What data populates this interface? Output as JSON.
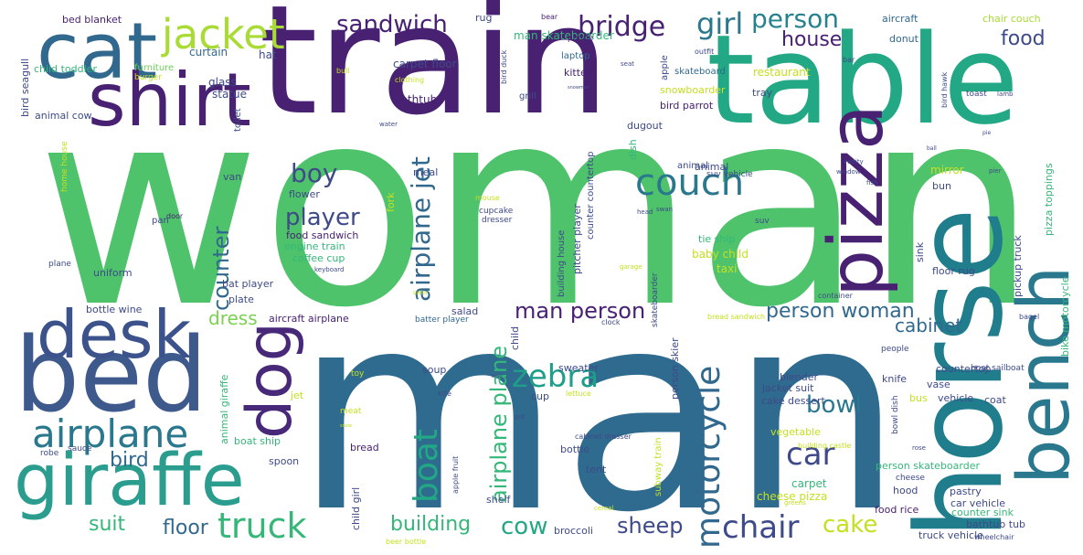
{
  "palette": {
    "dark_purple": "#482173",
    "dark_blue": "#3e4a89",
    "steel_blue": "#31688e",
    "teal": "#26828e",
    "sea_green": "#1f9e89",
    "green": "#35b779",
    "light_green": "#6ece58",
    "yellow_green": "#b5de2b",
    "yellow": "#fde725",
    "background": "#ffffff"
  },
  "words": [
    {
      "text": "woman",
      "color": "#4ec36b"
    },
    {
      "text": "man",
      "color": "#2f6b8e"
    },
    {
      "text": "train",
      "color": "#482173"
    },
    {
      "text": "table",
      "color": "#22a884"
    },
    {
      "text": "horse",
      "color": "#1f7d8c"
    },
    {
      "text": "bed",
      "color": "#3e5a8c"
    },
    {
      "text": "cat",
      "color": "#31688e"
    },
    {
      "text": "shirt",
      "color": "#482173"
    },
    {
      "text": "giraffe",
      "color": "#2a9d8f"
    },
    {
      "text": "desk",
      "color": "#3b528b"
    },
    {
      "text": "pizza",
      "color": "#482173"
    },
    {
      "text": "bench",
      "color": "#2a788e"
    },
    {
      "text": "dog",
      "color": "#482878"
    },
    {
      "text": "jacket",
      "color": "#a8db34"
    },
    {
      "text": "airplane",
      "color": "#2a788e"
    },
    {
      "text": "couch",
      "color": "#2a788e"
    },
    {
      "text": "truck",
      "color": "#35b779"
    },
    {
      "text": "chair",
      "color": "#3e4a89"
    },
    {
      "text": "motorcycle",
      "color": "#31688e"
    },
    {
      "text": "car",
      "color": "#3e4a89"
    },
    {
      "text": "zebra",
      "color": "#1f9e89"
    },
    {
      "text": "boat",
      "color": "#22a884"
    },
    {
      "text": "girl",
      "color": "#2a788e"
    },
    {
      "text": "bridge",
      "color": "#482173"
    },
    {
      "text": "sandwich",
      "color": "#482173"
    },
    {
      "text": "person",
      "color": "#26828e"
    },
    {
      "text": "house",
      "color": "#482173"
    },
    {
      "text": "food",
      "color": "#3e4a89"
    },
    {
      "text": "boy",
      "color": "#3e4a89"
    },
    {
      "text": "player",
      "color": "#3e4a89"
    },
    {
      "text": "counter",
      "color": "#31688e"
    },
    {
      "text": "airplane jet",
      "color": "#31688e"
    },
    {
      "text": "airplane plane",
      "color": "#35b779"
    },
    {
      "text": "man person",
      "color": "#482173"
    },
    {
      "text": "person woman",
      "color": "#31688e"
    },
    {
      "text": "cabinet",
      "color": "#31688e"
    },
    {
      "text": "bowl",
      "color": "#2a788e"
    },
    {
      "text": "dress",
      "color": "#7ad151"
    },
    {
      "text": "bird",
      "color": "#31688e"
    },
    {
      "text": "suit",
      "color": "#35b779"
    },
    {
      "text": "floor",
      "color": "#31688e"
    },
    {
      "text": "building",
      "color": "#35b779"
    },
    {
      "text": "cow",
      "color": "#22a884"
    },
    {
      "text": "sheep",
      "color": "#3e4a89"
    },
    {
      "text": "cake",
      "color": "#c5e021"
    },
    {
      "text": "man skateboarder",
      "color": "#35b779"
    },
    {
      "text": "bed blanket",
      "color": "#482173"
    },
    {
      "text": "child toddler",
      "color": "#35b779"
    },
    {
      "text": "bird seagull",
      "color": "#3e4a89"
    },
    {
      "text": "animal cow",
      "color": "#3e4a89"
    },
    {
      "text": "curtain",
      "color": "#31688e"
    },
    {
      "text": "furniture",
      "color": "#6ece58"
    },
    {
      "text": "hat",
      "color": "#3e4a89"
    },
    {
      "text": "rug",
      "color": "#3e4a89"
    },
    {
      "text": "bear",
      "color": "#482173"
    },
    {
      "text": "aircraft",
      "color": "#31688e"
    },
    {
      "text": "chair couch",
      "color": "#a8db34"
    },
    {
      "text": "carpet floor",
      "color": "#3e4a89"
    },
    {
      "text": "glass",
      "color": "#3e4a89"
    },
    {
      "text": "statue",
      "color": "#3e4a89"
    },
    {
      "text": "bathtub",
      "color": "#482173"
    },
    {
      "text": "kitten",
      "color": "#482173"
    },
    {
      "text": "laptop",
      "color": "#31688e"
    },
    {
      "text": "phone",
      "color": "#482173"
    },
    {
      "text": "skateboard",
      "color": "#31688e"
    },
    {
      "text": "donut",
      "color": "#31688e"
    },
    {
      "text": "restaurant",
      "color": "#c5e021"
    },
    {
      "text": "snowboarder",
      "color": "#c5e021"
    },
    {
      "text": "bird parrot",
      "color": "#482173"
    },
    {
      "text": "tray",
      "color": "#3e4a89"
    },
    {
      "text": "dugout",
      "color": "#3e4a89"
    },
    {
      "text": "toilet",
      "color": "#3e4a89"
    },
    {
      "text": "plane",
      "color": "#3e4a89"
    },
    {
      "text": "burger",
      "color": "#c5e021"
    },
    {
      "text": "pan",
      "color": "#3e4a89"
    },
    {
      "text": "door",
      "color": "#482173"
    },
    {
      "text": "van",
      "color": "#3e4a89"
    },
    {
      "text": "meal",
      "color": "#3e4a89"
    },
    {
      "text": "flower",
      "color": "#3e4a89"
    },
    {
      "text": "fork",
      "color": "#c5e021"
    },
    {
      "text": "food sandwich",
      "color": "#482173"
    },
    {
      "text": "engine train",
      "color": "#35b779"
    },
    {
      "text": "coffee cup",
      "color": "#35b779"
    },
    {
      "text": "uniform",
      "color": "#3e4a89"
    },
    {
      "text": "plate",
      "color": "#3e4a89"
    },
    {
      "text": "bottle wine",
      "color": "#3e4a89"
    },
    {
      "text": "aircraft airplane",
      "color": "#482173"
    },
    {
      "text": "salad",
      "color": "#3e4a89"
    },
    {
      "text": "batter player",
      "color": "#31688e"
    },
    {
      "text": "building house",
      "color": "#3e4a89"
    },
    {
      "text": "pitcher player",
      "color": "#3e4a89"
    },
    {
      "text": "counter countertop",
      "color": "#3e4a89"
    },
    {
      "text": "cupcake",
      "color": "#3e4a89"
    },
    {
      "text": "dresser",
      "color": "#3e4a89"
    },
    {
      "text": "animal",
      "color": "#3e4a89"
    },
    {
      "text": "suv vehicle",
      "color": "#3e4a89"
    },
    {
      "text": "tie ship",
      "color": "#35b779"
    },
    {
      "text": "baby child",
      "color": "#c5e021"
    },
    {
      "text": "taxi",
      "color": "#c5e021"
    },
    {
      "text": "mirror",
      "color": "#c5e021"
    },
    {
      "text": "bun",
      "color": "#3e4a89"
    },
    {
      "text": "sink",
      "color": "#3e4a89"
    },
    {
      "text": "floor rug",
      "color": "#3e4a89"
    },
    {
      "text": "pickup truck",
      "color": "#3e4a89"
    },
    {
      "text": "pizza toppings",
      "color": "#35b779"
    },
    {
      "text": "bike motorcycle",
      "color": "#35b779"
    },
    {
      "text": "dish",
      "color": "#35b779"
    },
    {
      "text": "skateboarder",
      "color": "#3e4a89"
    },
    {
      "text": "person skier",
      "color": "#3e4a89"
    },
    {
      "text": "sweater",
      "color": "#3e4a89"
    },
    {
      "text": "soup",
      "color": "#3e4a89"
    },
    {
      "text": "cup",
      "color": "#3e4a89"
    },
    {
      "text": "child",
      "color": "#3e4a89"
    },
    {
      "text": "blender",
      "color": "#3e4a89"
    },
    {
      "text": "jacket suit",
      "color": "#3e4a89"
    },
    {
      "text": "cake dessert",
      "color": "#3e4a89"
    },
    {
      "text": "vegetable",
      "color": "#c5e021"
    },
    {
      "text": "knife",
      "color": "#3e4a89"
    },
    {
      "text": "vase",
      "color": "#3e4a89"
    },
    {
      "text": "countertop",
      "color": "#3e4a89"
    },
    {
      "text": "people",
      "color": "#3e4a89"
    },
    {
      "text": "bus",
      "color": "#c5e021"
    },
    {
      "text": "vehicle",
      "color": "#3e4a89"
    },
    {
      "text": "coat",
      "color": "#3e4a89"
    },
    {
      "text": "boat sailboat",
      "color": "#3e4a89"
    },
    {
      "text": "bowl dish",
      "color": "#3e4a89"
    },
    {
      "text": "person skateboarder",
      "color": "#35b779"
    },
    {
      "text": "cheese",
      "color": "#3e4a89"
    },
    {
      "text": "hood",
      "color": "#3e4a89"
    },
    {
      "text": "pastry",
      "color": "#3e4a89"
    },
    {
      "text": "car vehicle",
      "color": "#3e4a89"
    },
    {
      "text": "counter sink",
      "color": "#35b779"
    },
    {
      "text": "bathtub tub",
      "color": "#3e4a89"
    },
    {
      "text": "food rice",
      "color": "#482173"
    },
    {
      "text": "truck vehicle",
      "color": "#3e4a89"
    },
    {
      "text": "carpet",
      "color": "#35b779"
    },
    {
      "text": "cheese pizza",
      "color": "#c5e021"
    },
    {
      "text": "tent",
      "color": "#3e4a89"
    },
    {
      "text": "bottle",
      "color": "#3e4a89"
    },
    {
      "text": "shelf",
      "color": "#3e4a89"
    },
    {
      "text": "broccoli",
      "color": "#3e4a89"
    },
    {
      "text": "bread",
      "color": "#482173"
    },
    {
      "text": "spoon",
      "color": "#3e4a89"
    },
    {
      "text": "boat ship",
      "color": "#35b779"
    },
    {
      "text": "animal giraffe",
      "color": "#35b779"
    },
    {
      "text": "robe",
      "color": "#3e4a89"
    },
    {
      "text": "jet",
      "color": "#c5e021"
    },
    {
      "text": "toy",
      "color": "#c5e021"
    },
    {
      "text": "meat",
      "color": "#c5e021"
    },
    {
      "text": "subway train",
      "color": "#c5e021"
    },
    {
      "text": "building castle",
      "color": "#c5e021"
    },
    {
      "text": "child girl",
      "color": "#3e4a89"
    },
    {
      "text": "cabinet dresser",
      "color": "#3e4a89"
    },
    {
      "text": "bread sandwich",
      "color": "#c5e021"
    },
    {
      "text": "container",
      "color": "#3e4a89"
    },
    {
      "text": "grill",
      "color": "#3e4a89"
    },
    {
      "text": "apple",
      "color": "#3e4a89"
    },
    {
      "text": "home house",
      "color": "#c5e021"
    },
    {
      "text": "outfit",
      "color": "#3e4a89"
    },
    {
      "text": "clothing",
      "color": "#c5e021"
    },
    {
      "text": "bull",
      "color": "#c5e021"
    },
    {
      "text": "bird duck",
      "color": "#3e4a89"
    },
    {
      "text": "seat",
      "color": "#3e4a89"
    },
    {
      "text": "bird hawk",
      "color": "#3e4a89"
    },
    {
      "text": "toast",
      "color": "#3e4a89"
    },
    {
      "text": "lamb",
      "color": "#3e4a89"
    },
    {
      "text": "bar",
      "color": "#3e4a89"
    },
    {
      "text": "water",
      "color": "#3e4a89"
    },
    {
      "text": "mouse",
      "color": "#c5e021"
    },
    {
      "text": "swan",
      "color": "#3e4a89"
    },
    {
      "text": "head",
      "color": "#3e4a89"
    },
    {
      "text": "suv",
      "color": "#3e4a89"
    },
    {
      "text": "vanity",
      "color": "#3e4a89"
    },
    {
      "text": "window",
      "color": "#3e4a89"
    },
    {
      "text": "fish",
      "color": "#3e4a89"
    },
    {
      "text": "pier",
      "color": "#3e4a89"
    },
    {
      "text": "keyboard",
      "color": "#3e4a89"
    },
    {
      "text": "garage",
      "color": "#c5e021"
    },
    {
      "text": "clock",
      "color": "#3e4a89"
    },
    {
      "text": "bagel",
      "color": "#3e4a89"
    },
    {
      "text": "kite",
      "color": "#3e4a89"
    },
    {
      "text": "lettuce",
      "color": "#c5e021"
    },
    {
      "text": "pot",
      "color": "#3e4a89"
    },
    {
      "text": "sauce",
      "color": "#3e4a89"
    },
    {
      "text": "apple fruit",
      "color": "#3e4a89"
    },
    {
      "text": "beer bottle",
      "color": "#c5e021"
    },
    {
      "text": "wheelchair",
      "color": "#3e4a89"
    },
    {
      "text": "cereal",
      "color": "#c5e021"
    },
    {
      "text": "greens",
      "color": "#c5e021"
    },
    {
      "text": "rose",
      "color": "#3e4a89"
    },
    {
      "text": "snowman",
      "color": "#3e4a89"
    },
    {
      "text": "snow",
      "color": "#c5e021"
    },
    {
      "text": "bowl",
      "color": "#3e4a89"
    },
    {
      "text": "ball",
      "color": "#3e4a89"
    },
    {
      "text": "pie",
      "color": "#3e4a89"
    },
    {
      "text": "sailor",
      "color": "#c5e021"
    },
    {
      "text": "bat player",
      "color": "#3e4a89"
    },
    {
      "text": "animal",
      "color": "#3e4a89"
    }
  ]
}
